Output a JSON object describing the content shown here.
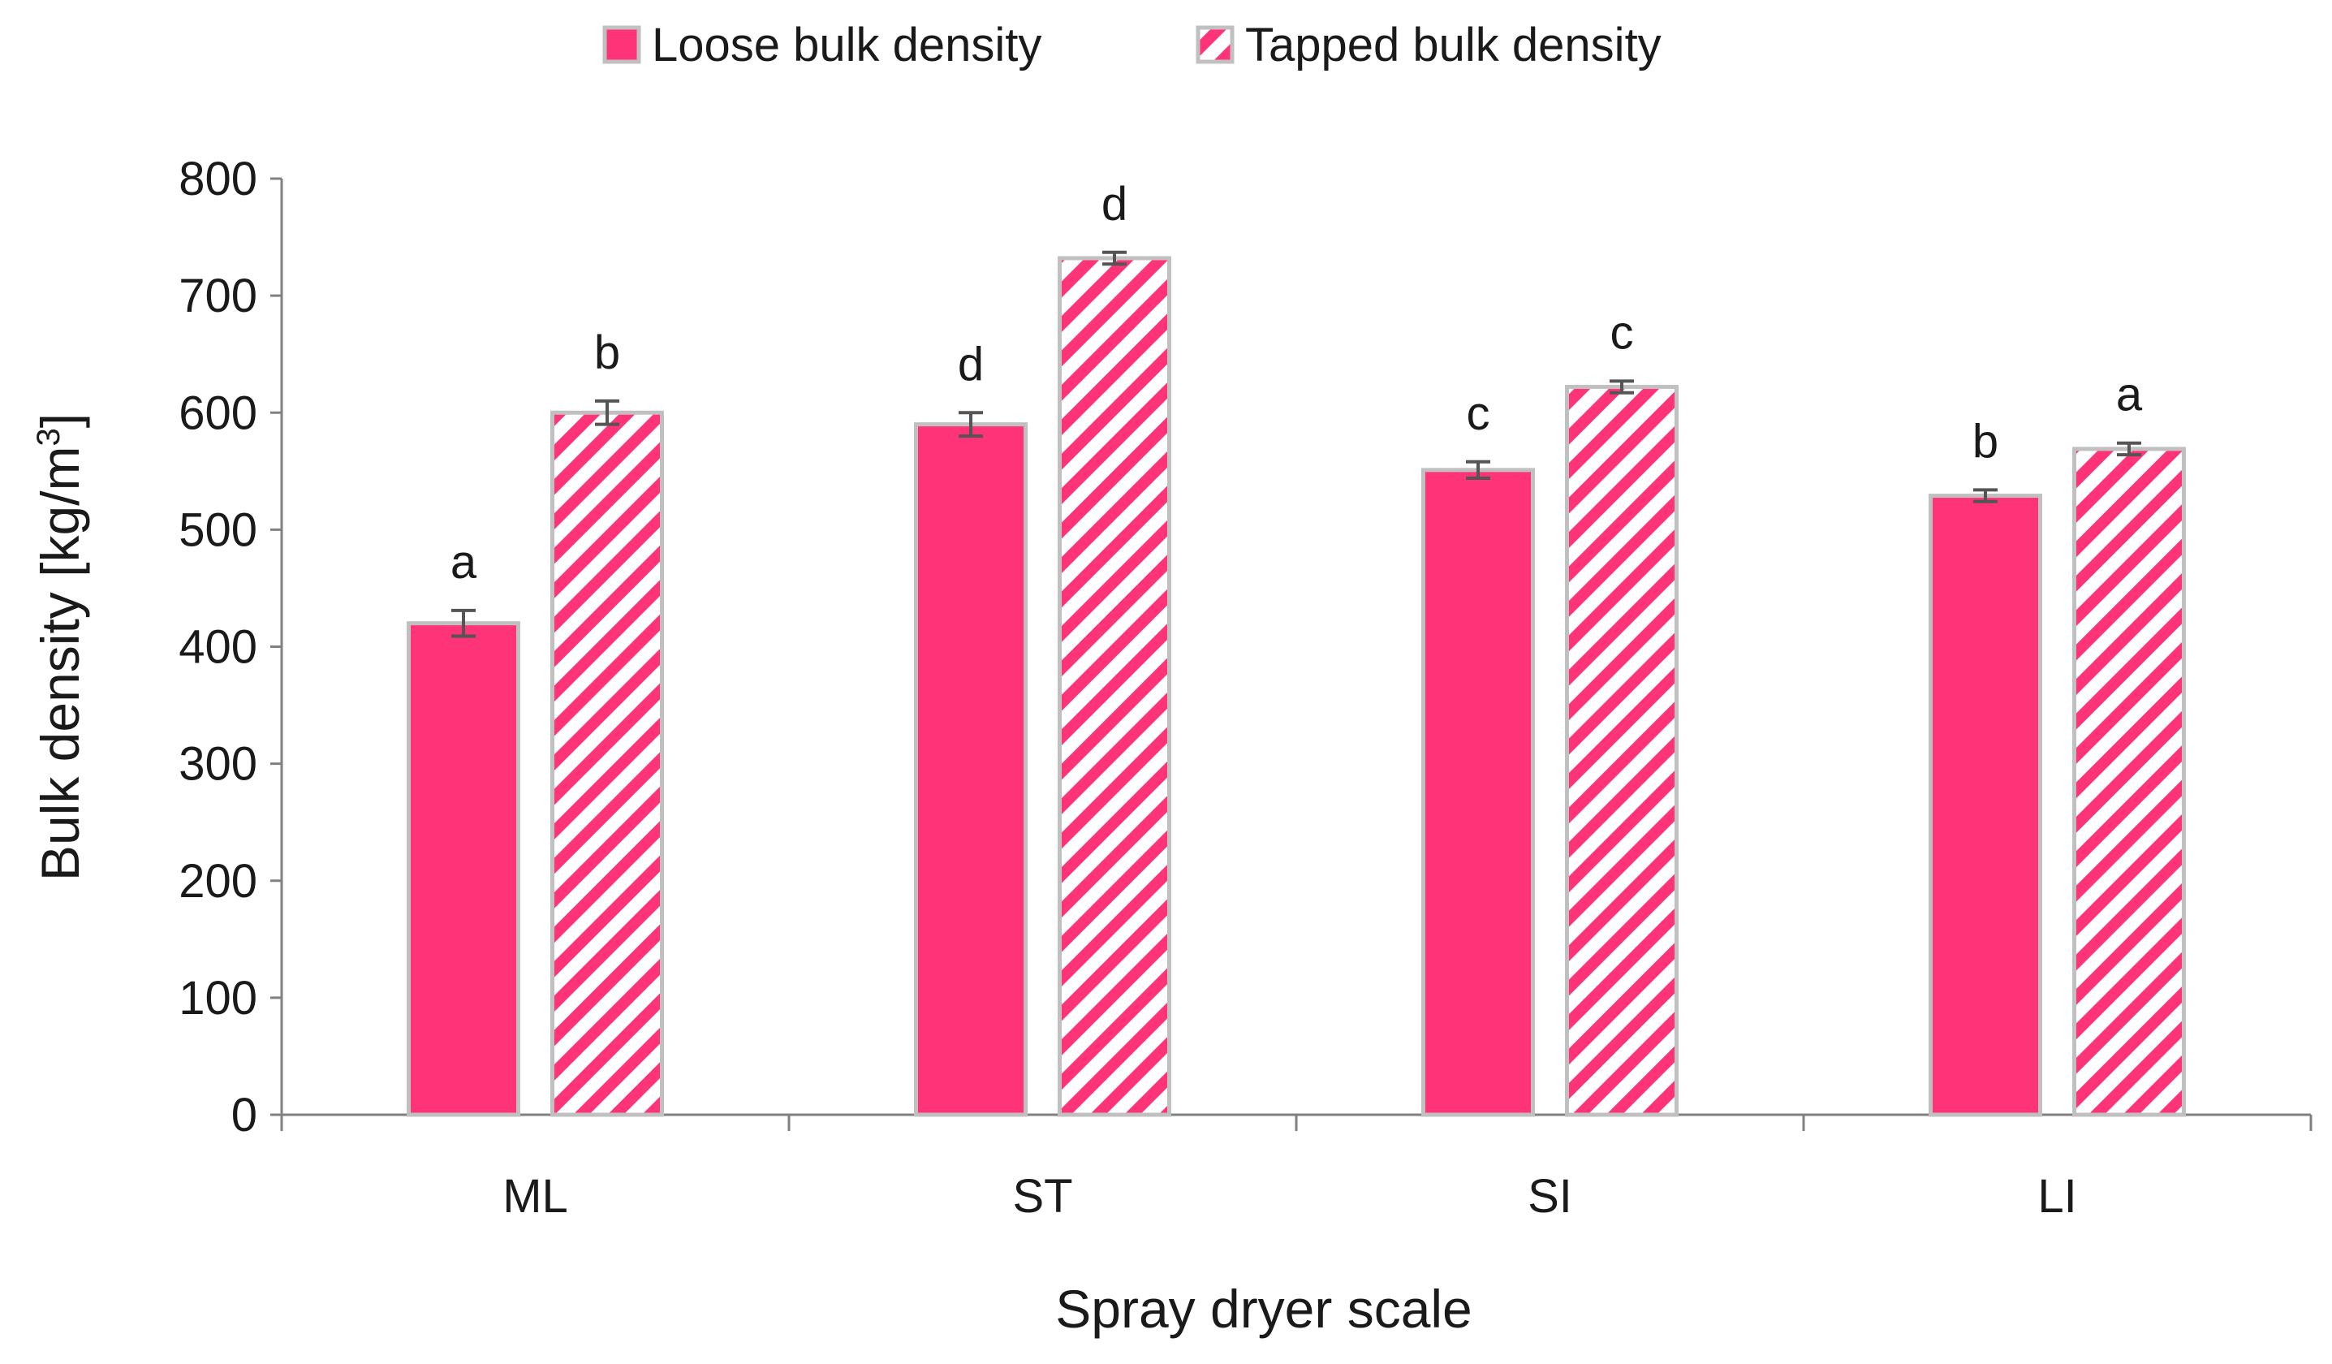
{
  "chart_data": {
    "type": "bar",
    "xlabel": "Spray dryer scale",
    "ylabel": "Bulk density [kg/m",
    "ylabel_sup": "3",
    "ylabel_close": "]",
    "categories": [
      "ML",
      "ST",
      "SI",
      "LI"
    ],
    "ylim": [
      0,
      800
    ],
    "yticks": [
      0,
      100,
      200,
      300,
      400,
      500,
      600,
      700,
      800
    ],
    "legend_position": "top-center",
    "series": [
      {
        "name": "Loose bulk density",
        "fill": "solid",
        "color": "#ff3377",
        "values": [
          420,
          590,
          551,
          529
        ],
        "errors": [
          11,
          10,
          7,
          5
        ],
        "letters": [
          "a",
          "d",
          "c",
          "b"
        ]
      },
      {
        "name": "Tapped bulk density",
        "fill": "hatched",
        "color": "#ff3377",
        "values": [
          600,
          732,
          622,
          569
        ],
        "errors": [
          10,
          5,
          5,
          5
        ],
        "letters": [
          "b",
          "d",
          "c",
          "a"
        ]
      }
    ],
    "colors": {
      "bar_border": "#c0c0c0",
      "error_bar": "#555555",
      "axis": "#808080"
    }
  }
}
